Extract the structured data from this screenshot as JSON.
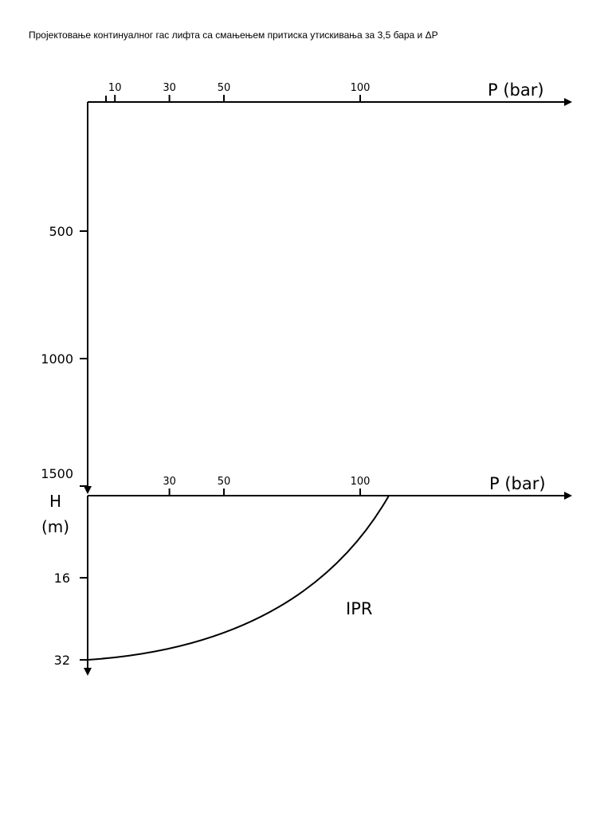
{
  "title": "Пројектовање континуалног гас лифта са смањењем притиска утискивања за 3,5 бара и ΔP",
  "top_chart": {
    "x_label": "P (bar)",
    "x_ticks": [
      10,
      30,
      50,
      100
    ],
    "y_ticks": [
      500,
      1000,
      1500
    ],
    "y_label": [
      "H",
      "(m)"
    ]
  },
  "bottom_chart": {
    "x_label": "P (bar)",
    "x_ticks": [
      30,
      50,
      100
    ],
    "y_ticks": [
      16,
      32
    ],
    "curve_label": "IPR"
  }
}
